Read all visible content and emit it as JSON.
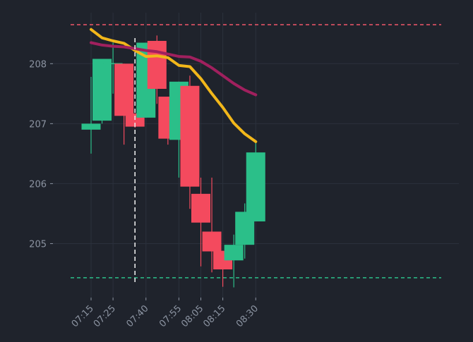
{
  "chart_data": {
    "type": "candlestick",
    "title": "",
    "xlabel": "",
    "ylabel": "",
    "ylim": [
      204.1,
      208.85
    ],
    "x_tick_labels": [
      "07:15",
      "07:25",
      "07:40",
      "07:55",
      "08:05",
      "08:15",
      "08:30"
    ],
    "y_tick_labels": [
      "205",
      "206",
      "207",
      "208"
    ],
    "y_tick_values": [
      205,
      206,
      207,
      208
    ],
    "grid": true,
    "colors": {
      "background": "#1f232c",
      "up": "#2bbf89",
      "down": "#f44a5e",
      "ma_fast": "#f2b71a",
      "ma_slow": "#a0205e",
      "upper_line": "#f0566a",
      "lower_line": "#2bbf89",
      "marker_line": "#e8e8e8"
    },
    "candles": [
      {
        "time": "07:15",
        "open": 206.9,
        "high": 207.78,
        "low": 206.5,
        "close": 207.0
      },
      {
        "time": "07:20",
        "open": 207.05,
        "high": 208.08,
        "low": 207.0,
        "close": 208.08
      },
      {
        "time": "07:25",
        "open": 208.0,
        "high": 208.35,
        "low": 207.5,
        "close": 208.0
      },
      {
        "time": "07:30",
        "open": 208.0,
        "high": 208.0,
        "low": 206.65,
        "close": 207.13
      },
      {
        "time": "07:35",
        "open": 207.17,
        "high": 207.17,
        "low": 206.93,
        "close": 206.95
      },
      {
        "time": "07:40",
        "open": 207.1,
        "high": 208.35,
        "low": 207.1,
        "close": 208.35
      },
      {
        "time": "07:45",
        "open": 208.38,
        "high": 208.47,
        "low": 207.33,
        "close": 207.58
      },
      {
        "time": "07:50",
        "open": 207.45,
        "high": 207.45,
        "low": 206.65,
        "close": 206.75
      },
      {
        "time": "07:55",
        "open": 206.73,
        "high": 207.7,
        "low": 206.1,
        "close": 207.7
      },
      {
        "time": "08:00",
        "open": 207.63,
        "high": 207.8,
        "low": 205.58,
        "close": 205.95
      },
      {
        "time": "08:05",
        "open": 205.83,
        "high": 206.1,
        "low": 204.62,
        "close": 205.35
      },
      {
        "time": "08:10",
        "open": 205.2,
        "high": 206.1,
        "low": 204.52,
        "close": 204.87
      },
      {
        "time": "08:15",
        "open": 204.88,
        "high": 204.88,
        "low": 204.28,
        "close": 204.57
      },
      {
        "time": "08:20",
        "open": 204.72,
        "high": 205.15,
        "low": 204.27,
        "close": 204.98
      },
      {
        "time": "08:25",
        "open": 204.98,
        "high": 205.67,
        "low": 204.75,
        "close": 205.53
      },
      {
        "time": "08:30",
        "open": 205.37,
        "high": 206.7,
        "low": 205.37,
        "close": 206.52
      }
    ],
    "series": [
      {
        "values": [
          208.57,
          208.43,
          208.38,
          208.34,
          208.22,
          208.12,
          208.13,
          208.1,
          207.97,
          207.95,
          207.75,
          207.5,
          207.27,
          207.01,
          206.83,
          206.7
        ]
      },
      {
        "values": [
          208.35,
          208.31,
          208.29,
          208.28,
          208.25,
          208.22,
          208.2,
          208.16,
          208.12,
          208.11,
          208.04,
          207.93,
          207.8,
          207.67,
          207.56,
          207.48
        ]
      }
    ],
    "upper_line": 208.65,
    "lower_line": 204.43,
    "vertical_marker_time": "07:35"
  }
}
